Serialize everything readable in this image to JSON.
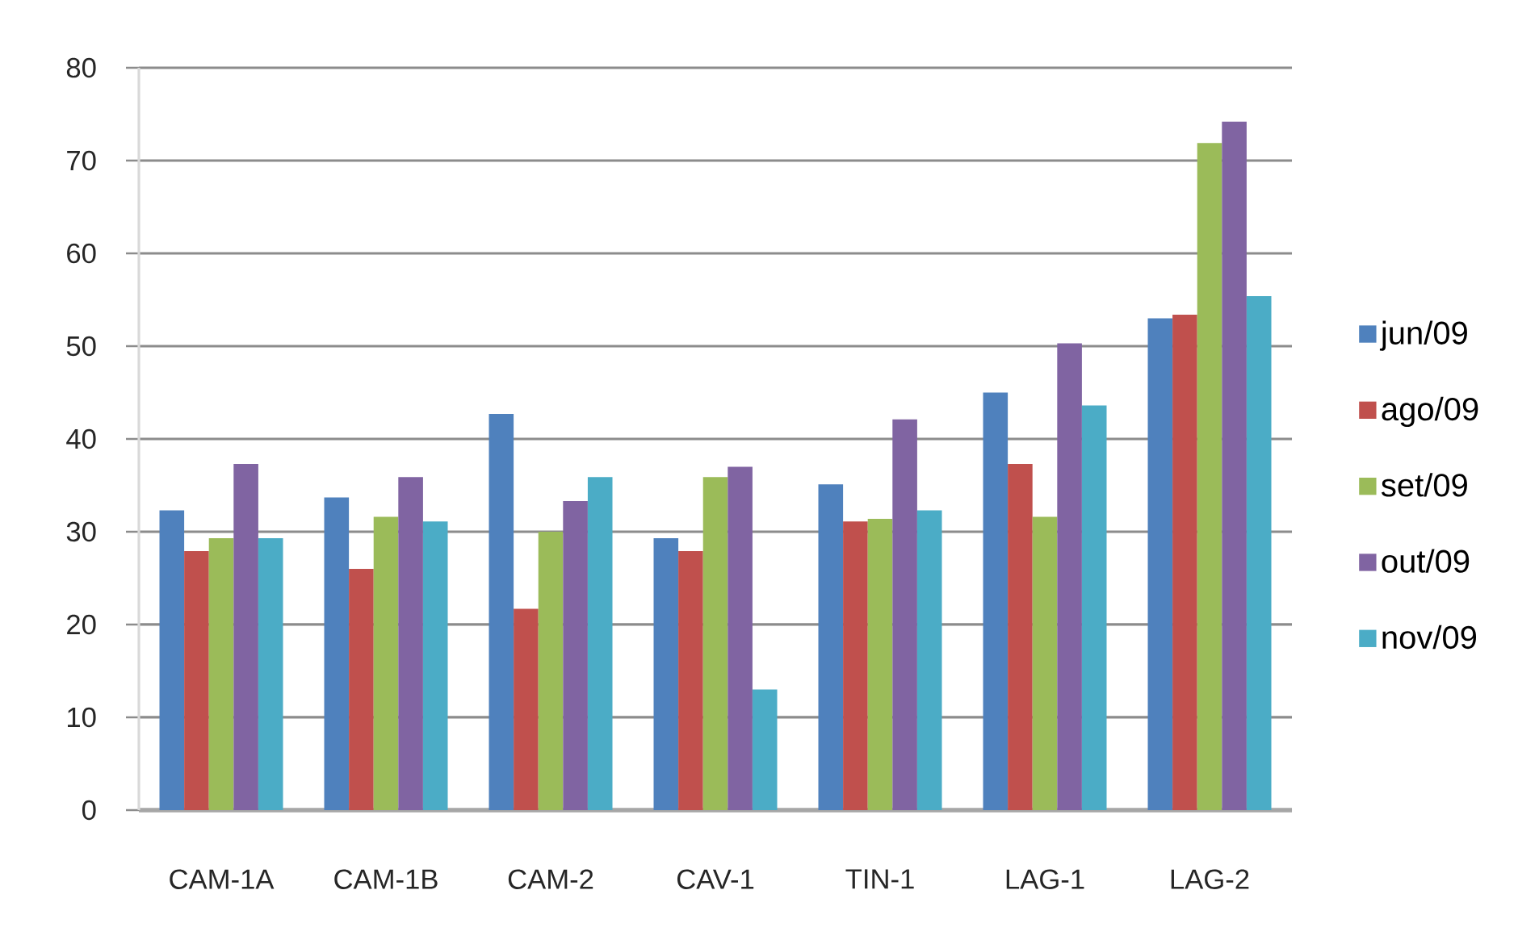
{
  "chart_data": {
    "type": "bar",
    "categories": [
      "CAM-1A",
      "CAM-1B",
      "CAM-2",
      "CAV-1",
      "TIN-1",
      "LAG-1",
      "LAG-2"
    ],
    "series": [
      {
        "name": "jun/09",
        "color": "#4f81bd",
        "values": [
          32.3,
          33.7,
          42.7,
          29.3,
          35.1,
          45.0,
          53.0
        ]
      },
      {
        "name": "ago/09",
        "color": "#c0504d",
        "values": [
          27.9,
          26.0,
          21.7,
          27.9,
          31.1,
          37.3,
          53.4
        ]
      },
      {
        "name": "set/09",
        "color": "#9bbb59",
        "values": [
          29.3,
          31.6,
          30.0,
          35.9,
          31.4,
          31.6,
          71.9
        ]
      },
      {
        "name": "out/09",
        "color": "#8064a2",
        "values": [
          37.3,
          35.9,
          33.3,
          37.0,
          42.1,
          50.3,
          74.2
        ]
      },
      {
        "name": "nov/09",
        "color": "#4bacc6",
        "values": [
          29.3,
          31.1,
          35.9,
          13.0,
          32.3,
          43.6,
          55.4
        ]
      }
    ],
    "ylim": [
      0,
      80
    ],
    "yticks": [
      0,
      10,
      20,
      30,
      40,
      50,
      60,
      70,
      80
    ],
    "grid": "y",
    "legend": "right"
  }
}
